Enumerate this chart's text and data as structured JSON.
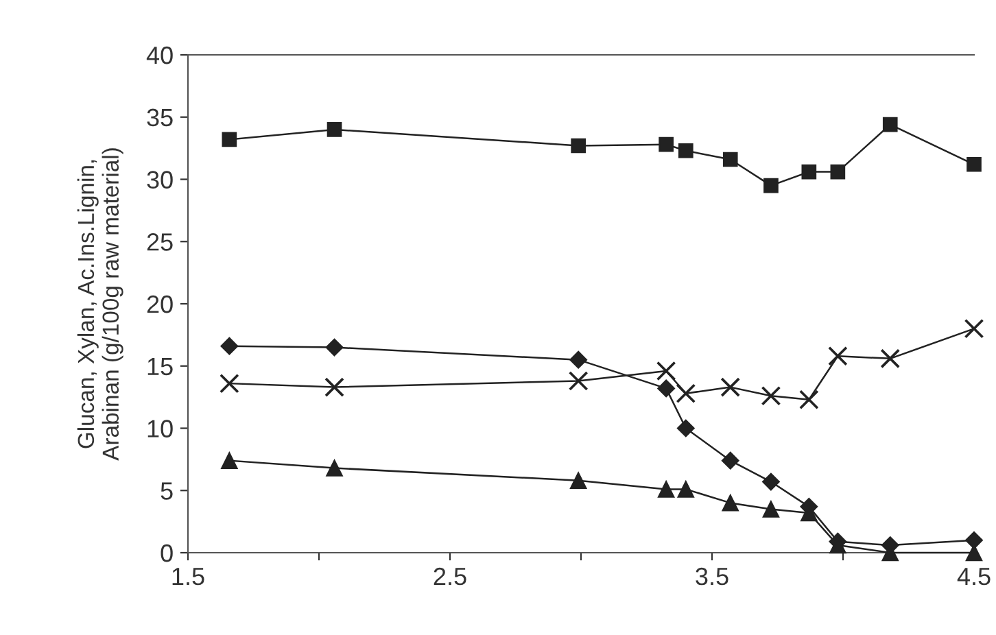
{
  "chart_data": {
    "type": "line",
    "ylabel": "Glucan, Xylan, Ac.Ins.Lignin,\nArabinan (g/100g raw material)",
    "x": [
      1.658,
      2.059,
      2.99,
      3.325,
      3.4,
      3.57,
      3.725,
      3.87,
      3.98,
      4.18,
      4.5
    ],
    "series": [
      {
        "color": "#222222",
        "marker": "square",
        "values": [
          33.2,
          34.0,
          32.7,
          32.8,
          32.3,
          31.6,
          29.5,
          30.6,
          30.6,
          34.4,
          31.2
        ]
      },
      {
        "color": "#222222",
        "marker": "diamond",
        "values": [
          16.6,
          16.5,
          15.5,
          13.2,
          10.0,
          7.4,
          5.7,
          3.7,
          0.9,
          0.6,
          1.0
        ]
      },
      {
        "color": "#222222",
        "marker": "cross",
        "values": [
          13.6,
          13.3,
          13.8,
          14.6,
          12.8,
          13.3,
          12.6,
          12.3,
          15.8,
          15.6,
          18.0
        ]
      },
      {
        "color": "#222222",
        "marker": "triangle",
        "values": [
          7.4,
          6.8,
          5.8,
          5.1,
          5.1,
          4.0,
          3.5,
          3.2,
          0.6,
          0.0,
          0.0
        ]
      }
    ],
    "xlim": [
      1.5,
      4.5
    ],
    "xticks": [
      1.5,
      {
        "value": 2,
        "label": null
      },
      2.5,
      {
        "value": 3,
        "label": null
      },
      3.5,
      {
        "value": 4,
        "label": null
      },
      4.5
    ],
    "ylim": [
      0,
      40
    ],
    "yticks": [
      0,
      5,
      10,
      15,
      20,
      25,
      30,
      35,
      40
    ],
    "grid": false,
    "legend": false,
    "line_style": "solid"
  }
}
